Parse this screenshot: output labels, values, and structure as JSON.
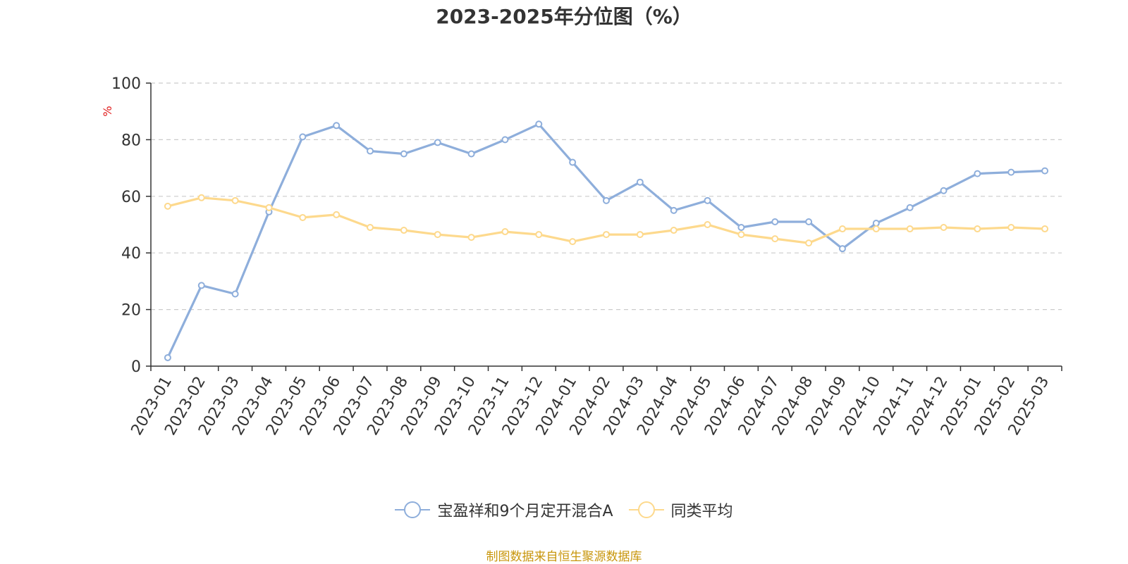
{
  "chart_data": {
    "type": "line",
    "title": "2023-2025年分位图（%）",
    "ylabel": "%",
    "ylim": [
      0,
      100
    ],
    "yticks": [
      0,
      20,
      40,
      60,
      80,
      100
    ],
    "grid": true,
    "legend_position": "bottom",
    "categories": [
      "2023-01",
      "2023-02",
      "2023-03",
      "2023-04",
      "2023-05",
      "2023-06",
      "2023-07",
      "2023-08",
      "2023-09",
      "2023-10",
      "2023-11",
      "2023-12",
      "2024-01",
      "2024-02",
      "2024-03",
      "2024-04",
      "2024-05",
      "2024-06",
      "2024-07",
      "2024-08",
      "2024-09",
      "2024-10",
      "2024-11",
      "2024-12",
      "2025-01",
      "2025-02",
      "2025-03"
    ],
    "series": [
      {
        "name": "宝盈祥和9个月定开混合A",
        "color": "#8eaedb",
        "values": [
          3,
          28.5,
          25.5,
          54.5,
          81,
          85,
          76,
          75,
          79,
          75,
          80,
          85.5,
          72,
          58.5,
          65,
          55,
          58.5,
          49,
          51,
          51,
          41.5,
          50.5,
          56,
          62,
          68,
          68.5,
          69
        ]
      },
      {
        "name": "同类平均",
        "color": "#fdd98d",
        "values": [
          56.5,
          59.5,
          58.5,
          56,
          52.5,
          53.5,
          49,
          48,
          46.5,
          45.5,
          47.5,
          46.5,
          44,
          46.5,
          46.5,
          48,
          50,
          46.5,
          45,
          43.5,
          48.5,
          48.5,
          48.5,
          49,
          48.5,
          49,
          48.5
        ]
      }
    ]
  },
  "source_note": "制图数据来自恒生聚源数据库"
}
